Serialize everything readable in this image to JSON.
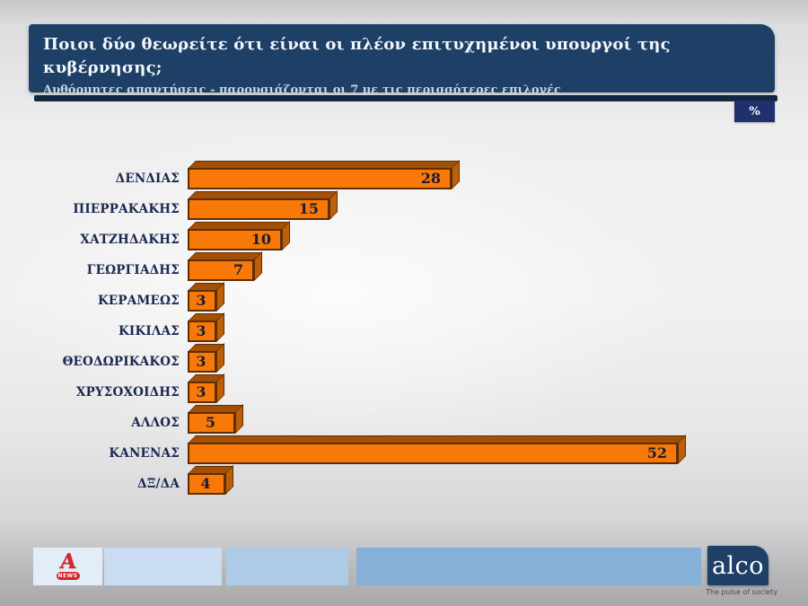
{
  "header": {
    "title": "Ποιοι δύο θεωρείτε ότι είναι οι πλέον επιτυχημένοι υπουργοί της κυβέρνησης;",
    "subtitle": "Αυθόρμητες απαντήσεις - παρουσιάζονται οι 7 με τις περισσότερες επιλογές",
    "unit_badge": "%"
  },
  "chart_data": {
    "type": "bar",
    "orientation": "horizontal",
    "title": "Ποιοι δύο θεωρείτε ότι είναι οι πλέον επιτυχημένοι υπουργοί της κυβέρνησης;",
    "xlabel": "",
    "ylabel": "",
    "unit": "%",
    "categories": [
      "ΔΕΝΔΙΑΣ",
      "ΠΙΕΡΡΑΚΑΚΗΣ",
      "ΧΑΤΖΗΔΑΚΗΣ",
      "ΓΕΩΡΓΙΑΔΗΣ",
      "ΚΕΡΑΜΕΩΣ",
      "ΚΙΚΙΛΑΣ",
      "ΘΕΟΔΩΡΙΚΑΚΟΣ",
      "ΧΡΥΣΟΧΟΙΔΗΣ",
      "ΑΛΛΟΣ",
      "ΚΑΝΕΝΑΣ",
      "ΔΞ/ΔΑ"
    ],
    "values": [
      28,
      15,
      10,
      7,
      3,
      3,
      3,
      3,
      5,
      52,
      4
    ],
    "xlim": [
      0,
      55
    ],
    "grid": false,
    "legend": "none",
    "data_labels": true,
    "style": "3d-orange-bars"
  },
  "theme": {
    "header_bg": "#1e3f66",
    "underline_bg": "#122841",
    "badge_bg": "#20306f",
    "bar": "#f87908",
    "bartop": "#a34f05",
    "barside": "#bd5f08",
    "outline": "#5e2e03",
    "valcol": "#1b1b35"
  },
  "footer": {
    "alpha_logo": {
      "letter": "A",
      "sub": "NEWS"
    },
    "alco_logo": {
      "text": "alco",
      "tagline": "The pulse of society"
    }
  }
}
